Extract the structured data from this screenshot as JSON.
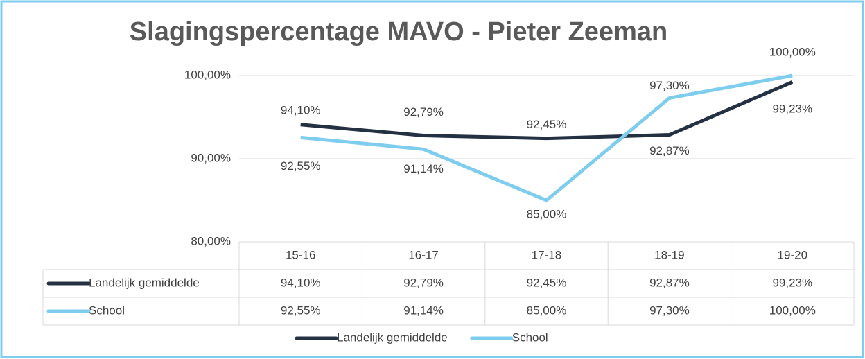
{
  "chart_data": {
    "type": "line",
    "title": "Slagingspercentage MAVO - Pieter Zeeman",
    "categories": [
      "15-16",
      "16-17",
      "17-18",
      "18-19",
      "19-20"
    ],
    "series": [
      {
        "name": "Landelijk gemiddelde",
        "color": "#243142",
        "values": [
          94.1,
          92.79,
          92.45,
          92.87,
          99.23
        ],
        "value_labels": [
          "94,10%",
          "92,79%",
          "92,45%",
          "92,87%",
          "99,23%"
        ]
      },
      {
        "name": "School",
        "color": "#7fcdee",
        "values": [
          92.55,
          91.14,
          85.0,
          97.3,
          100.0
        ],
        "value_labels": [
          "92,55%",
          "91,14%",
          "85,00%",
          "97,30%",
          "100,00%"
        ]
      }
    ],
    "ylim": [
      80,
      100
    ],
    "yticks": [
      {
        "value": 80,
        "label": "80,00%"
      },
      {
        "value": 90,
        "label": "90,00%"
      },
      {
        "value": 100,
        "label": "100,00%"
      }
    ],
    "grid": true,
    "legend": "bottom",
    "data_table": true
  }
}
